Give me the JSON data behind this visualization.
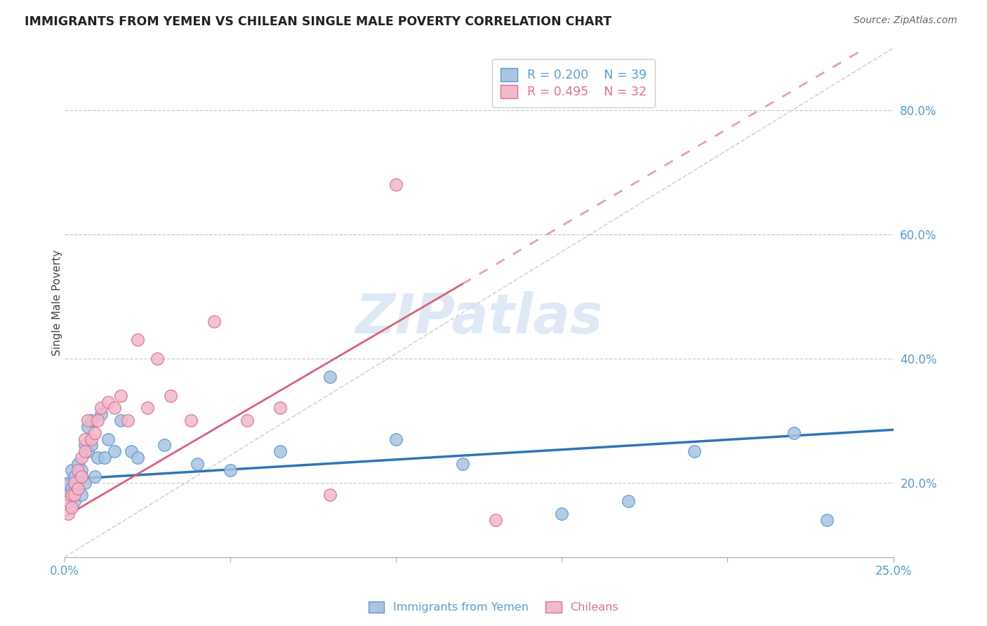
{
  "title": "IMMIGRANTS FROM YEMEN VS CHILEAN SINGLE MALE POVERTY CORRELATION CHART",
  "source": "Source: ZipAtlas.com",
  "ylabel": "Single Male Poverty",
  "xlim": [
    0.0,
    0.25
  ],
  "ylim": [
    0.08,
    0.9
  ],
  "xtick_positions": [
    0.0,
    0.05,
    0.1,
    0.15,
    0.2,
    0.25
  ],
  "xtick_show": [
    0.0,
    0.25
  ],
  "yticks_right": [
    0.2,
    0.4,
    0.6,
    0.8
  ],
  "series1_label": "Immigrants from Yemen",
  "series1_R": "0.200",
  "series1_N": "39",
  "series1_color": "#aac4e2",
  "series1_edge": "#5b9bd5",
  "series2_label": "Chileans",
  "series2_R": "0.495",
  "series2_N": "32",
  "series2_color": "#f2b8cc",
  "series2_edge": "#e07090",
  "trend1_color": "#2e75b6",
  "trend2_color": "#d9607a",
  "diag_color": "#c8c8c8",
  "watermark_color": "#c5d8ee",
  "background": "#ffffff",
  "series1_x": [
    0.001,
    0.001,
    0.002,
    0.002,
    0.003,
    0.003,
    0.003,
    0.004,
    0.004,
    0.005,
    0.005,
    0.005,
    0.006,
    0.006,
    0.007,
    0.007,
    0.008,
    0.008,
    0.009,
    0.01,
    0.011,
    0.012,
    0.013,
    0.015,
    0.017,
    0.02,
    0.022,
    0.03,
    0.04,
    0.05,
    0.065,
    0.08,
    0.1,
    0.12,
    0.15,
    0.17,
    0.19,
    0.22,
    0.23
  ],
  "series1_y": [
    0.2,
    0.18,
    0.22,
    0.19,
    0.2,
    0.17,
    0.21,
    0.23,
    0.19,
    0.22,
    0.21,
    0.18,
    0.26,
    0.2,
    0.29,
    0.25,
    0.26,
    0.3,
    0.21,
    0.24,
    0.31,
    0.24,
    0.27,
    0.25,
    0.3,
    0.25,
    0.24,
    0.26,
    0.23,
    0.22,
    0.25,
    0.37,
    0.27,
    0.23,
    0.15,
    0.17,
    0.25,
    0.28,
    0.14
  ],
  "series2_x": [
    0.001,
    0.001,
    0.002,
    0.002,
    0.003,
    0.003,
    0.004,
    0.004,
    0.005,
    0.005,
    0.006,
    0.006,
    0.007,
    0.008,
    0.009,
    0.01,
    0.011,
    0.013,
    0.015,
    0.017,
    0.019,
    0.022,
    0.025,
    0.028,
    0.032,
    0.038,
    0.045,
    0.055,
    0.065,
    0.08,
    0.1,
    0.13
  ],
  "series2_y": [
    0.17,
    0.15,
    0.18,
    0.16,
    0.18,
    0.2,
    0.22,
    0.19,
    0.24,
    0.21,
    0.27,
    0.25,
    0.3,
    0.27,
    0.28,
    0.3,
    0.32,
    0.33,
    0.32,
    0.34,
    0.3,
    0.43,
    0.32,
    0.4,
    0.34,
    0.3,
    0.46,
    0.3,
    0.32,
    0.18,
    0.68,
    0.14
  ],
  "trend1_x0": 0.0,
  "trend1_y0": 0.205,
  "trend1_x1": 0.25,
  "trend1_y1": 0.285,
  "trend2_x0": 0.0,
  "trend2_y0": 0.145,
  "trend2_x1": 0.12,
  "trend2_y1": 0.52
}
